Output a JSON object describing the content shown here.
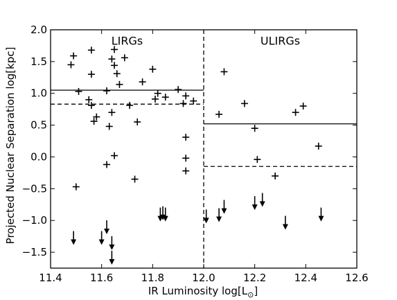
{
  "chart_data": {
    "type": "scatter",
    "xlabel": "IR Luminosity log[L",
    "xlabel_sub": "⊙",
    "xlabel_suffix": "]",
    "ylabel": "Projected Nuclear Separation log[kpc]",
    "xlim": [
      11.4,
      12.6
    ],
    "ylim": [
      -1.75,
      2.0
    ],
    "xticks": [
      11.4,
      11.6,
      11.8,
      12.0,
      12.2,
      12.4,
      12.6
    ],
    "xtick_labels": [
      "11.4",
      "11.6",
      "11.8",
      "12.0",
      "12.2",
      "12.4",
      "12.6"
    ],
    "yticks": [
      2.0,
      1.5,
      1.0,
      0.5,
      0.0,
      -0.5,
      -1.0,
      -1.5
    ],
    "ytick_labels": [
      "2.0",
      "1.5",
      "1.0",
      "0.5",
      "0.0",
      "−0.5",
      "−1.0",
      "−1.5"
    ],
    "grid": false,
    "annotations": [
      {
        "text": "LIRGs",
        "x": 11.7,
        "y": 1.83
      },
      {
        "text": "ULIRGs",
        "x": 12.3,
        "y": 1.83
      }
    ],
    "divider_x": 12.0,
    "reference_lines": [
      {
        "region": "LIRGs",
        "style": "solid",
        "y": 1.05,
        "x_range": [
          11.4,
          12.0
        ]
      },
      {
        "region": "LIRGs",
        "style": "dashed",
        "y": 0.83,
        "x_range": [
          11.4,
          12.0
        ]
      },
      {
        "region": "ULIRGs",
        "style": "solid",
        "y": 0.52,
        "x_range": [
          12.0,
          12.6
        ]
      },
      {
        "region": "ULIRGs",
        "style": "dashed",
        "y": -0.15,
        "x_range": [
          12.0,
          12.6
        ]
      }
    ],
    "series": [
      {
        "marker": "plus",
        "points": [
          {
            "x": 11.48,
            "y": 1.45
          },
          {
            "x": 11.49,
            "y": 1.59
          },
          {
            "x": 11.51,
            "y": 1.03
          },
          {
            "x": 11.5,
            "y": -0.47
          },
          {
            "x": 11.56,
            "y": 1.68
          },
          {
            "x": 11.56,
            "y": 1.3
          },
          {
            "x": 11.55,
            "y": 0.9
          },
          {
            "x": 11.56,
            "y": 0.81
          },
          {
            "x": 11.57,
            "y": 0.56
          },
          {
            "x": 11.58,
            "y": 0.63
          },
          {
            "x": 11.62,
            "y": 1.04
          },
          {
            "x": 11.62,
            "y": -0.12
          },
          {
            "x": 11.63,
            "y": 0.48
          },
          {
            "x": 11.64,
            "y": 1.54
          },
          {
            "x": 11.64,
            "y": 0.7
          },
          {
            "x": 11.65,
            "y": 1.69
          },
          {
            "x": 11.65,
            "y": 1.44
          },
          {
            "x": 11.66,
            "y": 1.31
          },
          {
            "x": 11.65,
            "y": 0.02
          },
          {
            "x": 11.67,
            "y": 1.14
          },
          {
            "x": 11.69,
            "y": 1.56
          },
          {
            "x": 11.71,
            "y": 0.81
          },
          {
            "x": 11.73,
            "y": -0.35
          },
          {
            "x": 11.74,
            "y": 0.55
          },
          {
            "x": 11.76,
            "y": 1.18
          },
          {
            "x": 11.8,
            "y": 1.38
          },
          {
            "x": 11.81,
            "y": 0.91
          },
          {
            "x": 11.82,
            "y": 1.0
          },
          {
            "x": 11.85,
            "y": 0.94
          },
          {
            "x": 11.9,
            "y": 1.06
          },
          {
            "x": 11.92,
            "y": 0.84
          },
          {
            "x": 11.93,
            "y": 0.96
          },
          {
            "x": 11.96,
            "y": 0.88
          },
          {
            "x": 11.93,
            "y": 0.31
          },
          {
            "x": 11.93,
            "y": -0.02
          },
          {
            "x": 11.93,
            "y": -0.22
          },
          {
            "x": 12.06,
            "y": 0.67
          },
          {
            "x": 12.08,
            "y": 1.34
          },
          {
            "x": 12.16,
            "y": 0.84
          },
          {
            "x": 12.2,
            "y": 0.45
          },
          {
            "x": 12.21,
            "y": -0.04
          },
          {
            "x": 12.28,
            "y": -0.3
          },
          {
            "x": 12.36,
            "y": 0.7
          },
          {
            "x": 12.39,
            "y": 0.8
          },
          {
            "x": 12.45,
            "y": 0.17
          }
        ]
      },
      {
        "marker": "arrow-down",
        "points": [
          {
            "x": 11.49,
            "y": -1.32
          },
          {
            "x": 11.6,
            "y": -1.32
          },
          {
            "x": 11.62,
            "y": -1.15
          },
          {
            "x": 11.64,
            "y": -1.4
          },
          {
            "x": 11.64,
            "y": -1.63
          },
          {
            "x": 11.83,
            "y": -0.95
          },
          {
            "x": 11.84,
            "y": -0.93
          },
          {
            "x": 11.85,
            "y": -0.95
          },
          {
            "x": 12.01,
            "y": -0.98
          },
          {
            "x": 12.06,
            "y": -0.96
          },
          {
            "x": 12.08,
            "y": -0.83
          },
          {
            "x": 12.2,
            "y": -0.77
          },
          {
            "x": 12.23,
            "y": -0.72
          },
          {
            "x": 12.32,
            "y": -1.08
          },
          {
            "x": 12.46,
            "y": -0.95
          }
        ]
      }
    ]
  }
}
